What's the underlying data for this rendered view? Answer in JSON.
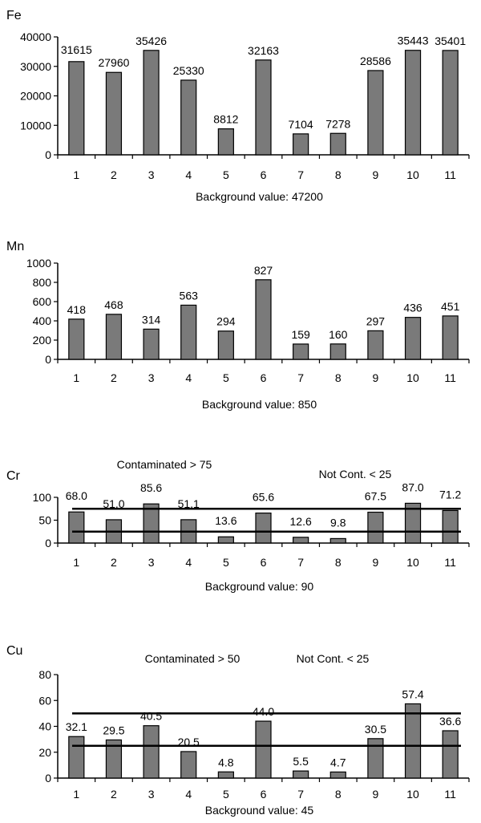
{
  "chart_data": [
    {
      "type": "bar",
      "title": "Fe",
      "categories": [
        "1",
        "2",
        "3",
        "4",
        "5",
        "6",
        "7",
        "8",
        "9",
        "10",
        "11"
      ],
      "values": [
        31615,
        27960,
        35426,
        25330,
        8812,
        32163,
        7104,
        7278,
        28586,
        35443,
        35401
      ],
      "value_labels": [
        "31615",
        "27960",
        "35426",
        "25330",
        "8812",
        "32163",
        "7104",
        "7278",
        "28586",
        "35443",
        "35401"
      ],
      "ylim": [
        0,
        40000
      ],
      "yticks": [
        0,
        10000,
        20000,
        30000,
        40000
      ],
      "ytick_labels": [
        "0",
        "10000",
        "20000",
        "30000",
        "40000"
      ],
      "xlabel": "Background value: 47200",
      "bar_color": "#7a7a7a",
      "grid": false,
      "thresholds": [],
      "annotations": []
    },
    {
      "type": "bar",
      "title": "Mn",
      "categories": [
        "1",
        "2",
        "3",
        "4",
        "5",
        "6",
        "7",
        "8",
        "9",
        "10",
        "11"
      ],
      "values": [
        418,
        468,
        314,
        563,
        294,
        827,
        159,
        160,
        297,
        436,
        451
      ],
      "value_labels": [
        "418",
        "468",
        "314",
        "563",
        "294",
        "827",
        "159",
        "160",
        "297",
        "436",
        "451"
      ],
      "ylim": [
        0,
        1000
      ],
      "yticks": [
        0,
        200,
        400,
        600,
        800,
        1000
      ],
      "ytick_labels": [
        "0",
        "200",
        "400",
        "600",
        "800",
        "1000"
      ],
      "xlabel": "Background value: 850",
      "bar_color": "#7a7a7a",
      "grid": false,
      "thresholds": [],
      "annotations": []
    },
    {
      "type": "bar",
      "title": "Cr",
      "categories": [
        "1",
        "2",
        "3",
        "4",
        "5",
        "6",
        "7",
        "8",
        "9",
        "10",
        "11"
      ],
      "values": [
        68.0,
        51.0,
        85.6,
        51.1,
        13.6,
        65.6,
        12.6,
        9.8,
        67.5,
        87.0,
        71.2
      ],
      "value_labels": [
        "68.0",
        "51.0",
        "85.6",
        "51.1",
        "13.6",
        "65.6",
        "12.6",
        "9.8",
        "67.5",
        "87.0",
        "71.2"
      ],
      "ylim": [
        0,
        100
      ],
      "yticks": [
        0,
        50,
        100
      ],
      "ytick_labels": [
        "0",
        "50",
        "100"
      ],
      "xlabel": "Background value: 90",
      "bar_color": "#7a7a7a",
      "grid": false,
      "thresholds": [
        75,
        25
      ],
      "annotations": [
        "Contaminated > 75",
        "Not Cont. < 25"
      ]
    },
    {
      "type": "bar",
      "title": "Cu",
      "categories": [
        "1",
        "2",
        "3",
        "4",
        "5",
        "6",
        "7",
        "8",
        "9",
        "10",
        "11"
      ],
      "values": [
        32.1,
        29.5,
        40.5,
        20.5,
        4.8,
        44.0,
        5.5,
        4.7,
        30.5,
        57.4,
        36.6
      ],
      "value_labels": [
        "32.1",
        "29.5",
        "40.5",
        "20.5",
        "4.8",
        "44.0",
        "5.5",
        "4.7",
        "30.5",
        "57.4",
        "36.6"
      ],
      "ylim": [
        0,
        80
      ],
      "yticks": [
        0,
        20,
        40,
        60,
        80
      ],
      "ytick_labels": [
        "0",
        "20",
        "40",
        "60",
        "80"
      ],
      "xlabel": "Background value: 45",
      "bar_color": "#7a7a7a",
      "grid": false,
      "thresholds": [
        50,
        25
      ],
      "annotations": [
        "Contaminated > 50",
        "Not Cont. < 25"
      ]
    }
  ]
}
